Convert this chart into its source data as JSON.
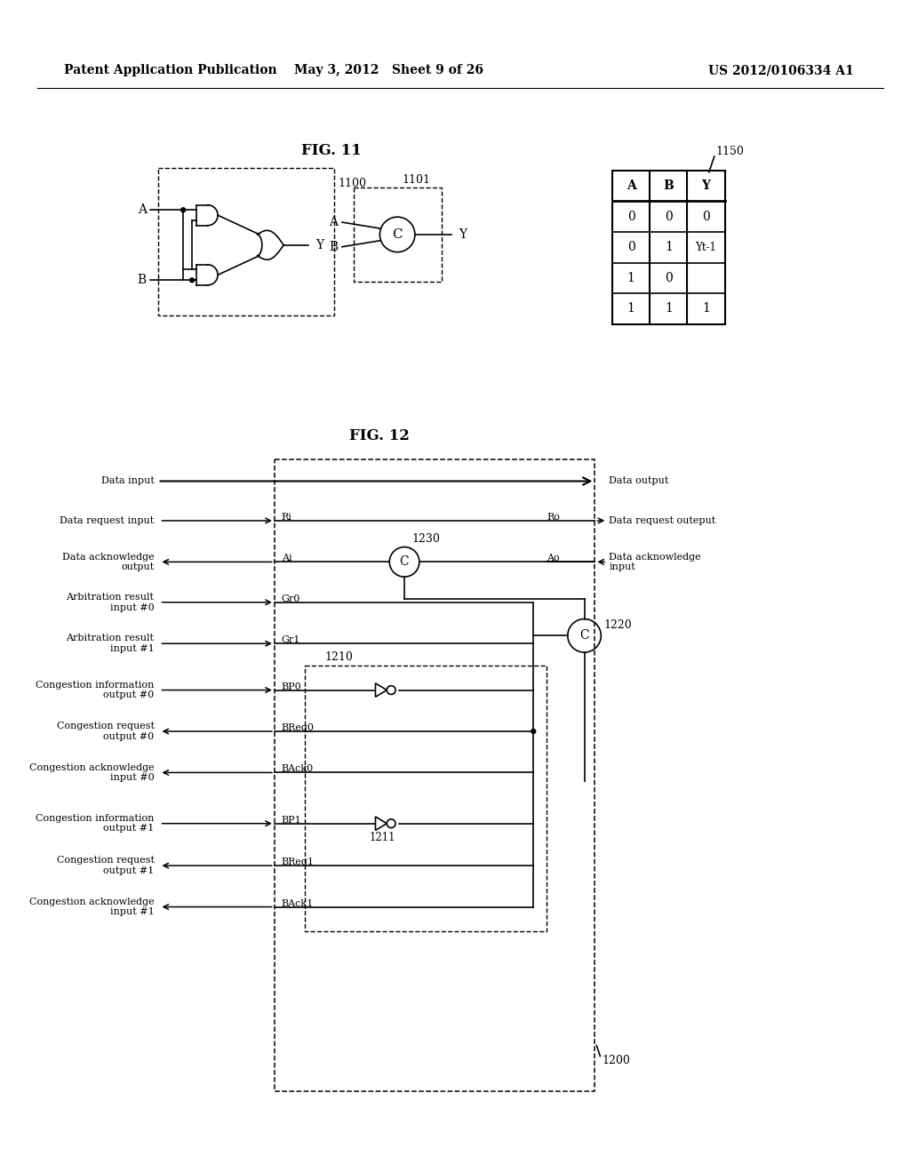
{
  "header_left": "Patent Application Publication",
  "header_center": "May 3, 2012   Sheet 9 of 26",
  "header_right": "US 2012/0106334 A1",
  "fig11_label": "FIG. 11",
  "fig12_label": "FIG. 12",
  "bg_color": "#ffffff",
  "line_color": "#000000",
  "text_color": "#000000"
}
